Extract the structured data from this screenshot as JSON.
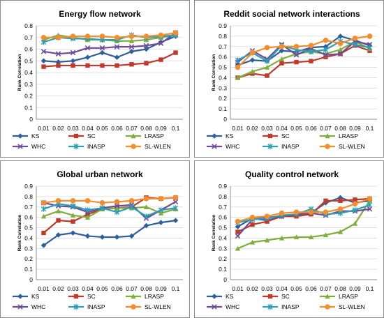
{
  "chart_data": [
    {
      "type": "line",
      "title": "Energy flow network",
      "ylabel": "Rank Correlation",
      "xlabel": "",
      "categories": [
        "0.01",
        "0.02",
        "0.03",
        "0.04",
        "0.05",
        "0.06",
        "0.07",
        "0.08",
        "0.09",
        "0.1"
      ],
      "ylim": [
        0,
        0.8
      ],
      "yticks": [
        "0",
        "0.1",
        "0.2",
        "0.3",
        "0.4",
        "0.5",
        "0.6",
        "0.7",
        "0.8"
      ],
      "grid": true,
      "legend": "bottom",
      "series": [
        {
          "name": "KS",
          "values": [
            0.5,
            0.49,
            0.5,
            0.53,
            0.57,
            0.53,
            0.58,
            0.6,
            0.66,
            0.71
          ]
        },
        {
          "name": "SC",
          "values": [
            0.45,
            0.46,
            0.46,
            0.46,
            0.46,
            0.46,
            0.47,
            0.48,
            0.51,
            0.57
          ]
        },
        {
          "name": "LRASP",
          "values": [
            0.68,
            0.72,
            0.7,
            0.68,
            0.68,
            0.67,
            0.67,
            0.68,
            0.7,
            0.72
          ]
        },
        {
          "name": "WHC",
          "values": [
            0.58,
            0.56,
            0.57,
            0.61,
            0.61,
            0.62,
            0.62,
            0.63,
            0.65,
            0.74
          ]
        },
        {
          "name": "INASP",
          "values": [
            0.66,
            0.7,
            0.69,
            0.69,
            0.68,
            0.68,
            0.72,
            0.7,
            0.71,
            0.72
          ]
        },
        {
          "name": "SL-WLEN",
          "values": [
            0.7,
            0.7,
            0.71,
            0.71,
            0.71,
            0.7,
            0.71,
            0.71,
            0.72,
            0.74
          ]
        }
      ]
    },
    {
      "type": "line",
      "title": "Reddit social network interactions",
      "ylabel": "Rank Correlation",
      "xlabel": "",
      "categories": [
        "0.01",
        "0.02",
        "0.03",
        "0.04",
        "0.05",
        "0.06",
        "0.07",
        "0.08",
        "0.09",
        "0.1"
      ],
      "ylim": [
        0,
        0.9
      ],
      "yticks": [
        "0",
        "0.1",
        "0.2",
        "0.3",
        "0.4",
        "0.5",
        "0.6",
        "0.7",
        "0.8",
        "0.9"
      ],
      "grid": true,
      "legend": "bottom",
      "series": [
        {
          "name": "KS",
          "values": [
            0.52,
            0.57,
            0.56,
            0.66,
            0.65,
            0.69,
            0.7,
            0.8,
            0.76,
            0.71
          ]
        },
        {
          "name": "SC",
          "values": [
            0.4,
            0.44,
            0.42,
            0.54,
            0.55,
            0.56,
            0.6,
            0.63,
            0.71,
            0.66
          ]
        },
        {
          "name": "LRASP",
          "values": [
            0.4,
            0.46,
            0.5,
            0.58,
            0.63,
            0.65,
            0.63,
            0.67,
            0.75,
            0.68
          ]
        },
        {
          "name": "WHC",
          "values": [
            0.55,
            0.66,
            0.58,
            0.72,
            0.62,
            0.68,
            0.62,
            0.63,
            0.75,
            0.72
          ]
        },
        {
          "name": "INASP",
          "values": [
            0.57,
            0.64,
            0.56,
            0.71,
            0.67,
            0.65,
            0.67,
            0.75,
            0.72,
            0.69
          ]
        },
        {
          "name": "SL-WLEN",
          "values": [
            0.5,
            0.64,
            0.69,
            0.7,
            0.7,
            0.71,
            0.76,
            0.73,
            0.78,
            0.8
          ]
        }
      ]
    },
    {
      "type": "line",
      "title": "Global urban network",
      "ylabel": "Rank Correlation",
      "xlabel": "",
      "categories": [
        "0.01",
        "0.02",
        "0.03",
        "0.04",
        "0.05",
        "0.06",
        "0.07",
        "0.08",
        "0.09",
        "0.1"
      ],
      "ylim": [
        0,
        0.9
      ],
      "yticks": [
        "0",
        "0.1",
        "0.2",
        "0.3",
        "0.4",
        "0.5",
        "0.6",
        "0.7",
        "0.8",
        "0.9"
      ],
      "grid": true,
      "legend": "bottom",
      "series": [
        {
          "name": "KS",
          "values": [
            0.33,
            0.43,
            0.45,
            0.42,
            0.41,
            0.41,
            0.42,
            0.52,
            0.55,
            0.57
          ]
        },
        {
          "name": "SC",
          "values": [
            0.45,
            0.57,
            0.56,
            0.63,
            0.68,
            0.69,
            0.7,
            0.79,
            0.78,
            0.79
          ]
        },
        {
          "name": "LRASP",
          "values": [
            0.61,
            0.66,
            0.62,
            0.6,
            0.68,
            0.69,
            0.69,
            0.7,
            0.64,
            0.68
          ]
        },
        {
          "name": "WHC",
          "values": [
            0.74,
            0.71,
            0.7,
            0.65,
            0.69,
            0.71,
            0.72,
            0.59,
            0.67,
            0.75
          ]
        },
        {
          "name": "INASP",
          "values": [
            0.68,
            0.73,
            0.71,
            0.67,
            0.69,
            0.65,
            0.7,
            0.61,
            0.67,
            0.69
          ]
        },
        {
          "name": "SL-WLEN",
          "values": [
            0.74,
            0.76,
            0.76,
            0.76,
            0.74,
            0.75,
            0.76,
            0.78,
            0.78,
            0.79
          ]
        }
      ]
    },
    {
      "type": "line",
      "title": "Quality control network",
      "ylabel": "Rank Correlation",
      "xlabel": "",
      "categories": [
        "0.01",
        "0.02",
        "0.03",
        "0.04",
        "0.05",
        "0.06",
        "0.07",
        "0.08",
        "0.09",
        "0.1"
      ],
      "ylim": [
        0,
        0.9
      ],
      "yticks": [
        "0",
        "0.1",
        "0.2",
        "0.3",
        "0.4",
        "0.5",
        "0.6",
        "0.7",
        "0.8",
        "0.9"
      ],
      "grid": true,
      "legend": "bottom",
      "series": [
        {
          "name": "KS",
          "values": [
            0.51,
            0.59,
            0.57,
            0.61,
            0.62,
            0.64,
            0.74,
            0.79,
            0.74,
            0.76
          ]
        },
        {
          "name": "SC",
          "values": [
            0.46,
            0.53,
            0.56,
            0.61,
            0.61,
            0.63,
            0.76,
            0.76,
            0.77,
            0.78
          ]
        },
        {
          "name": "LRASP",
          "values": [
            0.3,
            0.36,
            0.38,
            0.4,
            0.41,
            0.41,
            0.43,
            0.46,
            0.54,
            0.76
          ]
        },
        {
          "name": "WHC",
          "values": [
            0.42,
            0.58,
            0.6,
            0.61,
            0.63,
            0.64,
            0.62,
            0.66,
            0.66,
            0.68
          ]
        },
        {
          "name": "INASP",
          "values": [
            0.55,
            0.58,
            0.59,
            0.62,
            0.63,
            0.68,
            0.63,
            0.64,
            0.67,
            0.72
          ]
        },
        {
          "name": "SL-WLEN",
          "values": [
            0.56,
            0.6,
            0.61,
            0.64,
            0.65,
            0.65,
            0.65,
            0.68,
            0.73,
            0.78
          ]
        }
      ]
    }
  ],
  "series_colors": {
    "KS": "#2e5f9c",
    "SC": "#c0392b",
    "LRASP": "#7fae3a",
    "WHC": "#6f4b98",
    "INASP": "#2e9fb2",
    "SL-WLEN": "#f38d2e"
  },
  "series_markers": {
    "KS": "diamond",
    "SC": "square",
    "LRASP": "triangle",
    "WHC": "x",
    "INASP": "asterisk",
    "SL-WLEN": "circle"
  }
}
